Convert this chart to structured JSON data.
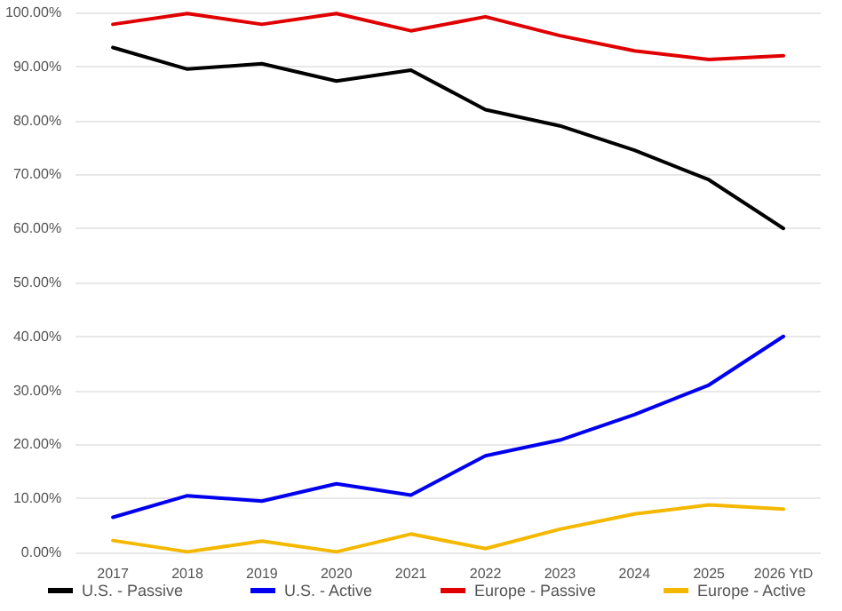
{
  "chart_data": {
    "type": "line",
    "categories": [
      "2017",
      "2018",
      "2019",
      "2020",
      "2021",
      "2022",
      "2023",
      "2024",
      "2025",
      "2026 YtD"
    ],
    "series": [
      {
        "name": "U.S. - Passive",
        "color": "#000000",
        "values": [
          93.5,
          89.5,
          90.5,
          87.3,
          89.3,
          82,
          79,
          74.5,
          69,
          60
        ]
      },
      {
        "name": "U.S. - Active",
        "color": "#0000ee",
        "values": [
          6.5,
          10.5,
          9.5,
          12.7,
          10.6,
          17.9,
          20.8,
          25.5,
          31,
          40
        ]
      },
      {
        "name": "Europe - Passive",
        "color": "#e00000",
        "values": [
          97.8,
          99.8,
          97.8,
          99.8,
          96.6,
          99.2,
          95.7,
          92.9,
          91.3,
          92
        ]
      },
      {
        "name": "Europe - Active",
        "color": "#f5b800",
        "values": [
          2.2,
          0.1,
          2.1,
          0.1,
          3.4,
          0.7,
          4.3,
          7.1,
          8.8,
          8
        ]
      }
    ],
    "ylim": [
      0,
      100
    ],
    "yticks": [
      {
        "value": 0,
        "label": "0.00%"
      },
      {
        "value": 10,
        "label": "10.00%"
      },
      {
        "value": 20,
        "label": "20.00%"
      },
      {
        "value": 30,
        "label": "30.00%"
      },
      {
        "value": 40,
        "label": "40.00%"
      },
      {
        "value": 50,
        "label": "50.00%"
      },
      {
        "value": 60,
        "label": "60.00%"
      },
      {
        "value": 70,
        "label": "70.00%"
      },
      {
        "value": 80,
        "label": "80.00%"
      },
      {
        "value": 90,
        "label": "90.00%"
      },
      {
        "value": 100,
        "label": "100.00%"
      }
    ],
    "grid": "y",
    "legend": "bottom left",
    "marker": "none",
    "line_style": "solid"
  }
}
